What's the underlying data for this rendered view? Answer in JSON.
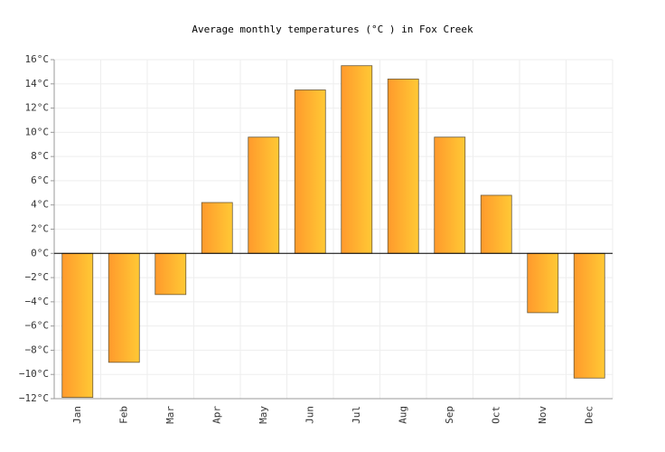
{
  "chart_data": {
    "type": "bar",
    "title": "Average monthly temperatures (°C ) in Fox Creek",
    "categories": [
      "Jan",
      "Feb",
      "Mar",
      "Apr",
      "May",
      "Jun",
      "Jul",
      "Aug",
      "Sep",
      "Oct",
      "Nov",
      "Dec"
    ],
    "values": [
      -11.9,
      -9.0,
      -3.4,
      4.2,
      9.6,
      13.5,
      15.5,
      14.4,
      9.6,
      4.8,
      -4.9,
      -10.3
    ],
    "gradient": [
      "#ff9a2c",
      "#ffc935"
    ],
    "ylim": [
      -12,
      16
    ],
    "yticks": [
      {
        "value": -12,
        "label": "−12°C"
      },
      {
        "value": -10,
        "label": "−10°C"
      },
      {
        "value": -8,
        "label": "−8°C"
      },
      {
        "value": -6,
        "label": "−6°C"
      },
      {
        "value": -4,
        "label": "−4°C"
      },
      {
        "value": -2,
        "label": "−2°C"
      },
      {
        "value": 0,
        "label": "0°C"
      },
      {
        "value": 2,
        "label": "2°C"
      },
      {
        "value": 4,
        "label": "4°C"
      },
      {
        "value": 6,
        "label": "6°C"
      },
      {
        "value": 8,
        "label": "8°C"
      },
      {
        "value": 10,
        "label": "10°C"
      },
      {
        "value": 12,
        "label": "12°C"
      },
      {
        "value": 14,
        "label": "14°C"
      },
      {
        "value": 16,
        "label": "16°C"
      }
    ],
    "grid": true
  }
}
